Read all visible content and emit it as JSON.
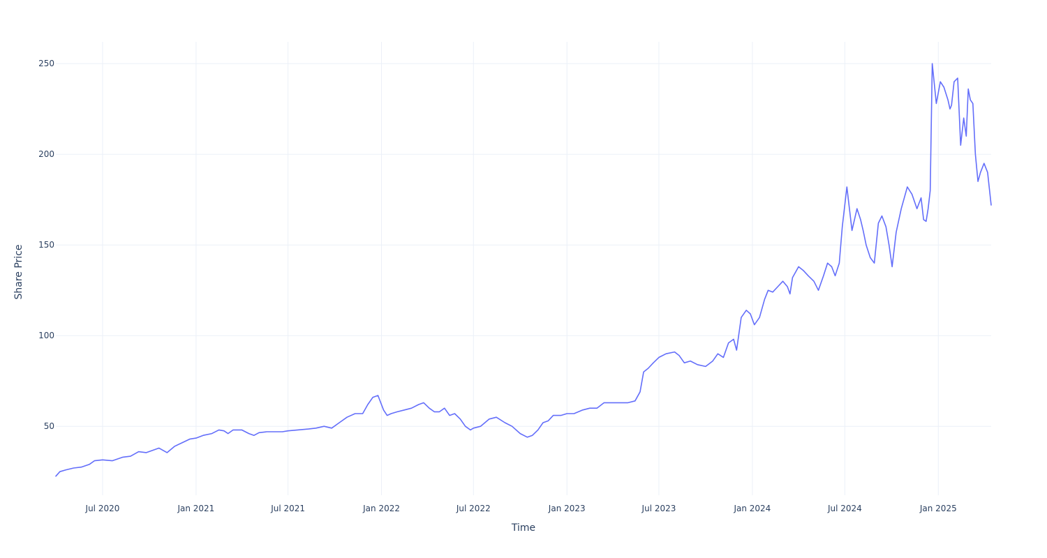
{
  "chart_data": {
    "type": "line",
    "title": "",
    "xlabel": "Time",
    "ylabel": "Share Price",
    "xlim": [
      "2020-03-31",
      "2025-04-15"
    ],
    "ylim": [
      12,
      262
    ],
    "grid": true,
    "legend": "none",
    "colors": {
      "line": "#636efa",
      "grid": "#ebf0f8",
      "text": "#2a3f5f"
    },
    "x_ticks": [
      {
        "date": "2020-07-01",
        "label": "Jul 2020"
      },
      {
        "date": "2021-01-01",
        "label": "Jan 2021"
      },
      {
        "date": "2021-07-01",
        "label": "Jul 2021"
      },
      {
        "date": "2022-01-01",
        "label": "Jan 2022"
      },
      {
        "date": "2022-07-01",
        "label": "Jul 2022"
      },
      {
        "date": "2023-01-01",
        "label": "Jan 2023"
      },
      {
        "date": "2023-07-01",
        "label": "Jul 2023"
      },
      {
        "date": "2024-01-01",
        "label": "Jan 2024"
      },
      {
        "date": "2024-07-01",
        "label": "Jul 2024"
      },
      {
        "date": "2025-01-01",
        "label": "Jan 2025"
      }
    ],
    "y_ticks": [
      {
        "value": 50,
        "label": "50"
      },
      {
        "value": 100,
        "label": "100"
      },
      {
        "value": 150,
        "label": "150"
      },
      {
        "value": 200,
        "label": "200"
      },
      {
        "value": 250,
        "label": "250"
      }
    ],
    "series": [
      {
        "x": [
          "2020-03-31",
          "2020-04-08",
          "2020-04-20",
          "2020-05-05",
          "2020-05-20",
          "2020-06-05",
          "2020-06-15",
          "2020-07-01",
          "2020-07-20",
          "2020-08-10",
          "2020-08-25",
          "2020-09-10",
          "2020-09-25",
          "2020-10-10",
          "2020-10-20",
          "2020-11-05",
          "2020-11-20",
          "2020-12-05",
          "2020-12-20",
          "2021-01-01",
          "2021-01-15",
          "2021-02-01",
          "2021-02-15",
          "2021-02-25",
          "2021-03-05",
          "2021-03-15",
          "2021-04-01",
          "2021-04-15",
          "2021-04-25",
          "2021-05-05",
          "2021-05-20",
          "2021-06-05",
          "2021-06-20",
          "2021-07-01",
          "2021-07-20",
          "2021-08-10",
          "2021-08-25",
          "2021-09-10",
          "2021-09-25",
          "2021-10-10",
          "2021-10-25",
          "2021-11-10",
          "2021-11-25",
          "2021-12-05",
          "2021-12-15",
          "2021-12-25",
          "2022-01-05",
          "2022-01-12",
          "2022-01-20",
          "2022-02-01",
          "2022-02-15",
          "2022-03-01",
          "2022-03-15",
          "2022-03-25",
          "2022-04-05",
          "2022-04-15",
          "2022-04-25",
          "2022-05-05",
          "2022-05-15",
          "2022-05-25",
          "2022-06-05",
          "2022-06-15",
          "2022-06-25",
          "2022-07-01",
          "2022-07-15",
          "2022-08-01",
          "2022-08-15",
          "2022-09-01",
          "2022-09-15",
          "2022-10-01",
          "2022-10-15",
          "2022-10-25",
          "2022-11-05",
          "2022-11-15",
          "2022-11-25",
          "2022-12-05",
          "2022-12-20",
          "2023-01-01",
          "2023-01-15",
          "2023-02-01",
          "2023-02-15",
          "2023-03-01",
          "2023-03-15",
          "2023-04-01",
          "2023-04-15",
          "2023-05-01",
          "2023-05-15",
          "2023-05-25",
          "2023-06-01",
          "2023-06-10",
          "2023-06-20",
          "2023-07-01",
          "2023-07-15",
          "2023-08-01",
          "2023-08-10",
          "2023-08-20",
          "2023-09-01",
          "2023-09-15",
          "2023-10-01",
          "2023-10-15",
          "2023-10-25",
          "2023-11-05",
          "2023-11-15",
          "2023-11-25",
          "2023-12-01",
          "2023-12-10",
          "2023-12-20",
          "2023-12-28",
          "2024-01-05",
          "2024-01-15",
          "2024-01-25",
          "2024-02-01",
          "2024-02-10",
          "2024-02-20",
          "2024-03-01",
          "2024-03-10",
          "2024-03-15",
          "2024-03-20",
          "2024-04-01",
          "2024-04-10",
          "2024-04-20",
          "2024-05-01",
          "2024-05-10",
          "2024-05-20",
          "2024-05-28",
          "2024-06-05",
          "2024-06-12",
          "2024-06-20",
          "2024-06-26",
          "2024-07-05",
          "2024-07-15",
          "2024-07-25",
          "2024-08-01",
          "2024-08-06",
          "2024-08-12",
          "2024-08-20",
          "2024-08-28",
          "2024-09-05",
          "2024-09-12",
          "2024-09-20",
          "2024-09-26",
          "2024-10-02",
          "2024-10-10",
          "2024-10-20",
          "2024-11-01",
          "2024-11-10",
          "2024-11-20",
          "2024-11-28",
          "2024-12-03",
          "2024-12-08",
          "2024-12-12",
          "2024-12-16",
          "2024-12-20",
          "2024-12-28",
          "2025-01-05",
          "2025-01-12",
          "2025-01-20",
          "2025-01-24",
          "2025-01-27",
          "2025-02-01",
          "2025-02-08",
          "2025-02-14",
          "2025-02-20",
          "2025-02-25",
          "2025-03-01",
          "2025-03-05",
          "2025-03-10",
          "2025-03-15",
          "2025-03-20",
          "2025-03-25",
          "2025-04-01",
          "2025-04-08",
          "2025-04-15"
        ],
        "y": [
          22.5,
          25,
          26,
          27,
          27.5,
          29,
          31,
          31.5,
          31,
          33,
          33.5,
          36,
          35.5,
          37,
          38,
          35.5,
          39,
          41,
          43,
          43.5,
          45,
          46,
          48,
          47.5,
          46,
          48,
          48,
          46,
          45,
          46.5,
          47,
          47,
          47,
          47.5,
          48,
          48.5,
          49,
          50,
          49,
          52,
          55,
          57,
          57,
          62,
          66,
          67,
          59,
          56,
          57,
          58,
          59,
          60,
          62,
          63,
          60,
          58,
          58,
          60,
          56,
          57,
          54,
          50,
          48,
          49,
          50,
          54,
          55,
          52,
          50,
          46,
          44,
          45,
          48,
          52,
          53,
          56,
          56,
          57,
          57,
          59,
          60,
          60,
          63,
          63,
          63,
          63,
          64,
          69,
          80,
          82,
          85,
          88,
          90,
          91,
          89,
          85,
          86,
          84,
          83,
          86,
          90,
          88,
          96,
          98,
          92,
          110,
          114,
          112,
          106,
          110,
          120,
          125,
          124,
          127,
          130,
          127,
          123,
          132,
          138,
          136,
          133,
          130,
          125,
          133,
          140,
          138,
          133,
          140,
          160,
          182,
          158,
          170,
          164,
          158,
          150,
          143,
          140,
          162,
          166,
          160,
          150,
          138,
          157,
          170,
          182,
          178,
          170,
          176,
          164,
          163,
          170,
          180,
          250,
          228,
          240,
          237,
          230,
          225,
          227,
          240,
          242,
          205,
          220,
          210,
          236,
          230,
          228,
          200,
          185,
          190,
          195,
          190,
          172
        ]
      }
    ]
  }
}
